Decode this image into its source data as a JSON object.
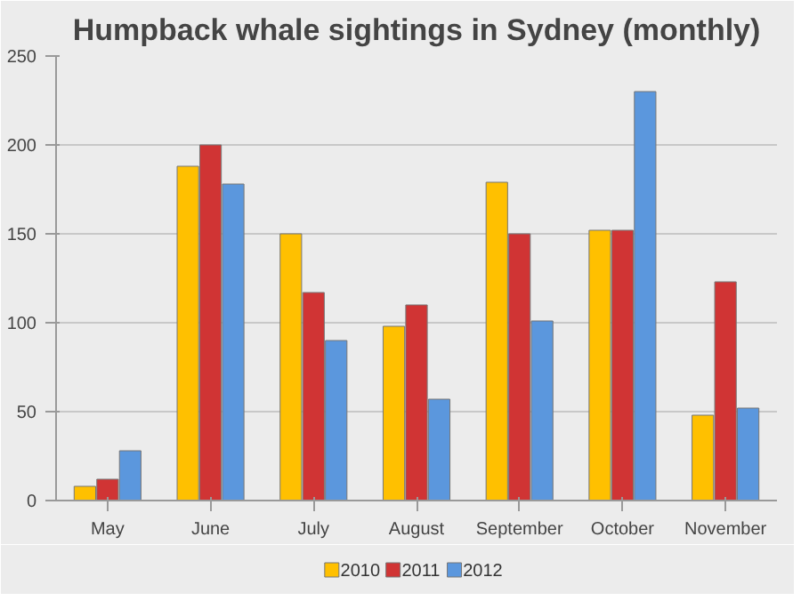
{
  "chart_data": {
    "type": "bar",
    "title": "Humpback whale sightings in Sydney (monthly)",
    "categories": [
      "May",
      "June",
      "July",
      "August",
      "September",
      "October",
      "November"
    ],
    "series": [
      {
        "name": "2010",
        "color": "#ffc000",
        "values": [
          8,
          188,
          150,
          98,
          179,
          152,
          48
        ]
      },
      {
        "name": "2011",
        "color": "#d03434",
        "values": [
          12,
          200,
          117,
          110,
          150,
          152,
          123
        ]
      },
      {
        "name": "2012",
        "color": "#5b97dd",
        "values": [
          28,
          178,
          90,
          57,
          101,
          230,
          52
        ]
      }
    ],
    "ylim": [
      0,
      250
    ],
    "yticks": [
      0,
      50,
      100,
      150,
      200,
      250
    ],
    "grid": "y",
    "legend": "bottom"
  }
}
